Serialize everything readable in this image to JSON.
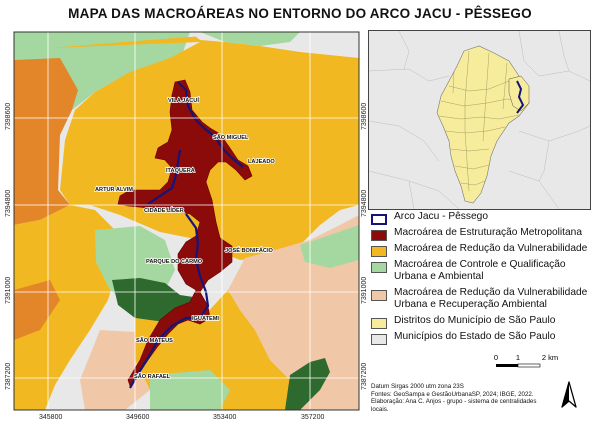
{
  "title": "MAPA DAS MACROÁREAS NO ENTORNO DO ARCO JACU - PÊSSEGO",
  "colors": {
    "metropolitana": "#8b0a0a",
    "vulnerabilidade": "#f2b822",
    "controle": "#a5d8a0",
    "recuperacao": "#f0c8a8",
    "distritos": "#f6ec9c",
    "municipios": "#e8e8e8",
    "arco_outline": "#14147a",
    "dark_green": "#2e6a2e",
    "orange": "#e3862a",
    "grid": "#ffffff"
  },
  "place_labels": [
    "VILA JACUÍ",
    "SÃO MIGUEL",
    "LAJEADO",
    "ITAQUERA",
    "ARTUR ALVIM",
    "CIDADE LÍDER",
    "JOSÉ BONIFÁCIO",
    "PARQUE DO CARMO",
    "IGUATEMI",
    "SÃO RAFAEL",
    "SÃO MATEUS"
  ],
  "x_coords": [
    "345800",
    "349600",
    "353400",
    "357200"
  ],
  "y_coords": [
    "7398600",
    "7394800",
    "7391000",
    "7387200"
  ],
  "legend": [
    {
      "label": "Arco Jacu - Pêssego",
      "color": "#ffffff",
      "border": "#14147a"
    },
    {
      "label": "Macroárea de Estruturação Metropolitana",
      "color": "#8b0a0a",
      "border": "#555555"
    },
    {
      "label": "Macroárea de Redução da Vulnerabilidade",
      "color": "#f2b822",
      "border": "#555555"
    },
    {
      "label": "Macroárea de Controle e Qualificação Urbana e Ambiental",
      "color": "#a5d8a0",
      "border": "#555555"
    },
    {
      "label": "Macroárea de Redução da Vulnerabilidade Urbana e Recuperação Ambiental",
      "color": "#f0c8a8",
      "border": "#555555"
    },
    {
      "label": "Distritos do Município de São Paulo",
      "color": "#f6ec9c",
      "border": "#555555"
    },
    {
      "label": "Municípios do Estado de São Paulo",
      "color": "#e8e8e8",
      "border": "#555555"
    }
  ],
  "scale": {
    "ticks": [
      "0",
      "1",
      "2 km"
    ]
  },
  "credits": [
    "Datum Sirgas 2000 utm zona 23S",
    "Fontes: GeoSampa e GestãoUrbanaSP, 2024; IBGE, 2022.",
    "Elaboração: Ana C. Anjos - grupo - sistema de centralidades locais."
  ],
  "north_label": ""
}
